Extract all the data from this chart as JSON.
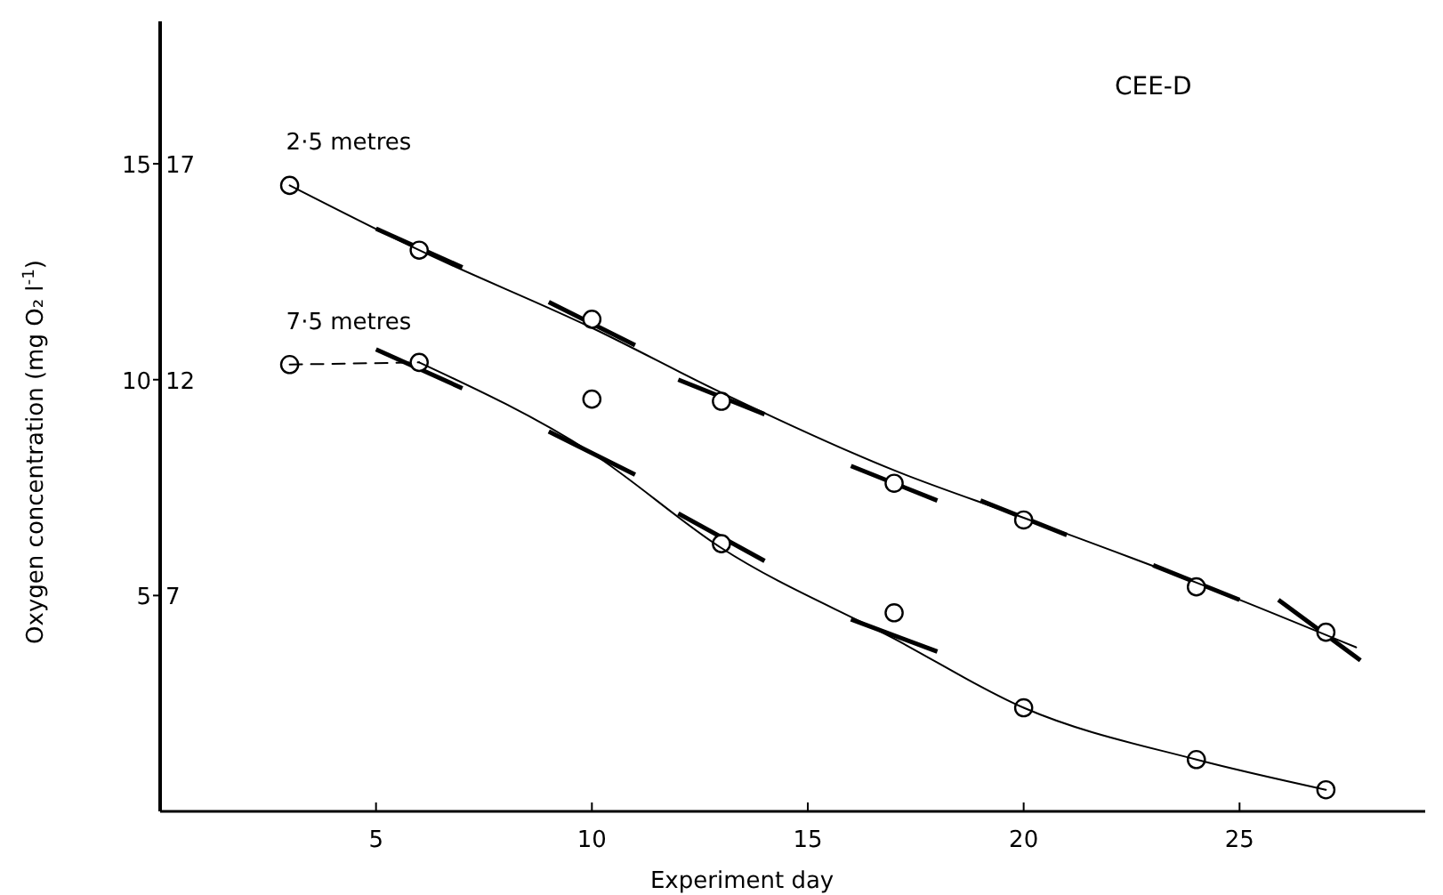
{
  "chart_data": {
    "type": "scatter",
    "title": "CEE-D",
    "xlabel": "Experiment day",
    "ylabel": "Oxygen  concentration (mg O₂ l$^{-1}$)",
    "xlim": [
      0,
      29.3
    ],
    "xticks": [
      5,
      10,
      15,
      20,
      25
    ],
    "ylim": [
      0,
      18.3
    ],
    "yticks": [
      5,
      10,
      15
    ],
    "y2lim": [
      2,
      20.3
    ],
    "y2ticks": [
      7,
      12,
      17
    ],
    "marker": "circle",
    "grid": false,
    "series": [
      {
        "name": "2·5 metres",
        "color": "#000000",
        "x": [
          3,
          6,
          10,
          13,
          17,
          20,
          24,
          27
        ],
        "values": [
          14.5,
          13.0,
          11.4,
          9.5,
          7.6,
          6.75,
          5.2,
          4.15
        ]
      },
      {
        "name": "7·5 metres",
        "color": "#000000",
        "x": [
          3,
          6,
          10,
          13,
          17,
          20,
          24,
          27
        ],
        "values": [
          10.35,
          10.4,
          9.55,
          6.2,
          4.6,
          2.4,
          1.2,
          0.5
        ]
      },
      {
        "type": "line",
        "color": "#000000",
        "marker": "none",
        "line_style": "solid",
        "x": [
          3,
          6,
          10,
          13,
          17,
          20,
          24,
          27.7
        ],
        "values": [
          14.5,
          13.0,
          11.2,
          9.7,
          7.9,
          6.8,
          5.3,
          3.8
        ]
      },
      {
        "type": "line",
        "color": "#000000",
        "marker": "none",
        "line_style": "solid",
        "x": [
          6,
          10,
          13,
          17,
          20,
          24,
          27
        ],
        "values": [
          10.4,
          8.3,
          6.1,
          4.0,
          2.4,
          1.2,
          0.5
        ]
      },
      {
        "type": "line",
        "color": "#000000",
        "marker": "none",
        "line_style": "dashed",
        "x": [
          3,
          6
        ],
        "values": [
          10.35,
          10.4
        ]
      }
    ]
  }
}
